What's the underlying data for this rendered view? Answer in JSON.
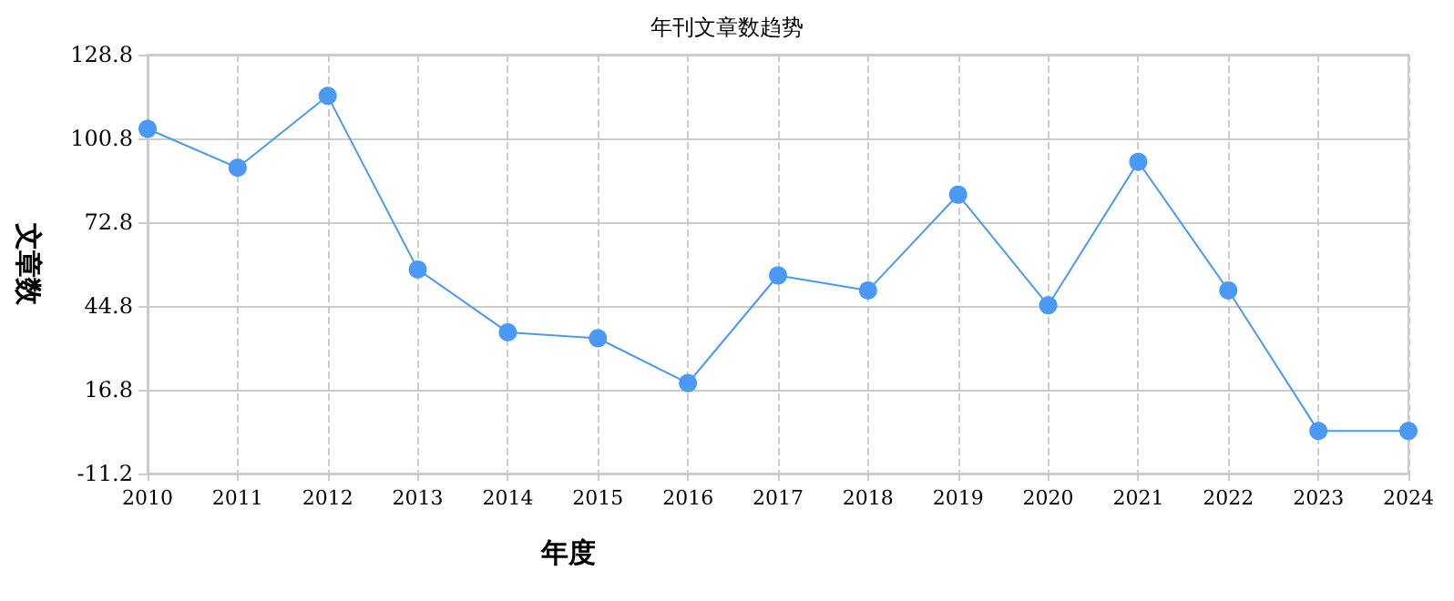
{
  "chart_data": {
    "type": "line",
    "title": "年刊文章数趋势",
    "xlabel": "年度",
    "ylabel": "文章数",
    "categories": [
      "2010",
      "2011",
      "2012",
      "2013",
      "2014",
      "2015",
      "2016",
      "2017",
      "2018",
      "2019",
      "2020",
      "2021",
      "2022",
      "2023",
      "2024"
    ],
    "series": [
      {
        "color": "#4a9af5",
        "values": [
          104,
          91,
          115,
          57,
          36,
          34,
          19,
          55,
          50,
          82,
          45,
          93,
          50,
          3,
          3
        ]
      }
    ],
    "ylim": [
      -11.2,
      128.8
    ],
    "yticks": [
      -11.2,
      16.8,
      44.8,
      72.8,
      100.8,
      128.8
    ],
    "grid": true,
    "marker": "circle",
    "line_style": "solid"
  }
}
